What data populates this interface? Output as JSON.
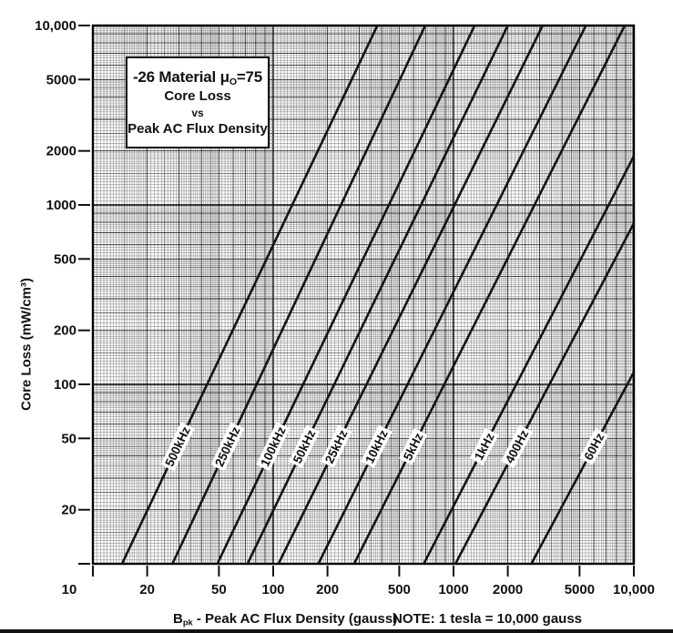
{
  "title_box": {
    "line1_a": "-26 Material μ",
    "line1_sub": "O",
    "line1_b": "=75",
    "line2": "Core Loss",
    "line3": "vs",
    "line4": "Peak AC Flux Density"
  },
  "y_axis_title": "Core Loss (mW/cm³)",
  "x_axis_caption": {
    "b": "B",
    "b_sub": "pk",
    "rest": " - Peak AC Flux Density (gauss)",
    "note": "NOTE: 1 tesla = 10,000 gauss"
  },
  "chart_data": {
    "type": "line",
    "title": "-26 Material μO=75 Core Loss vs Peak AC Flux Density",
    "xlabel": "Bpk - Peak AC Flux Density (gauss)",
    "ylabel": "Core Loss (mW/cm³)",
    "x_scale": "log",
    "y_scale": "log",
    "xlim": [
      10,
      10000
    ],
    "ylim": [
      10,
      10000
    ],
    "grid": "log-graph-paper",
    "legend_position": "labels-on-lines",
    "note": "1 tesla = 10,000 gauss",
    "x_ticks": [
      {
        "v": 10,
        "label": "10",
        "dx": -26
      },
      {
        "v": 20,
        "label": "20",
        "dx": 0
      },
      {
        "v": 50,
        "label": "50",
        "dx": 0
      },
      {
        "v": 100,
        "label": "100",
        "dx": 0
      },
      {
        "v": 200,
        "label": "200",
        "dx": 0
      },
      {
        "v": 500,
        "label": "500",
        "dx": 0
      },
      {
        "v": 1000,
        "label": "1000",
        "dx": 0
      },
      {
        "v": 2000,
        "label": "2000",
        "dx": 0
      },
      {
        "v": 5000,
        "label": "5000",
        "dx": 0
      },
      {
        "v": 10000,
        "label": "10,000",
        "dx": 0
      }
    ],
    "y_ticks": [
      {
        "v": 10000,
        "label": "10,000"
      },
      {
        "v": 5000,
        "label": "5000"
      },
      {
        "v": 2000,
        "label": "2000"
      },
      {
        "v": 1000,
        "label": "1000"
      },
      {
        "v": 500,
        "label": "500"
      },
      {
        "v": 200,
        "label": "200"
      },
      {
        "v": 100,
        "label": "100"
      },
      {
        "v": 50,
        "label": "50"
      },
      {
        "v": 20,
        "label": "20"
      },
      {
        "v": 10,
        "label": ""
      }
    ],
    "series_units": {
      "x": "gauss",
      "y": "mW/cm3"
    },
    "series": [
      {
        "label": "500kHz",
        "slope": 2.12,
        "b_at_100mW": 43,
        "points": [
          [
            14.5,
            10
          ],
          [
            43,
            100
          ],
          [
            127,
            1000
          ],
          [
            378,
            10000
          ]
        ]
      },
      {
        "label": "250kHz",
        "slope": 2.14,
        "b_at_100mW": 81,
        "points": [
          [
            27.6,
            10
          ],
          [
            81,
            100
          ],
          [
            238,
            1000
          ],
          [
            697,
            10000
          ]
        ]
      },
      {
        "label": "100kHz",
        "slope": 2.1,
        "b_at_100mW": 146,
        "points": [
          [
            49,
            10
          ],
          [
            146,
            100
          ],
          [
            437,
            1000
          ],
          [
            1310,
            10000
          ]
        ]
      },
      {
        "label": "50kHz",
        "slope": 2.08,
        "b_at_100mW": 218,
        "points": [
          [
            72,
            10
          ],
          [
            218,
            100
          ],
          [
            660,
            1000
          ],
          [
            2000,
            10000
          ]
        ]
      },
      {
        "label": "25kHz",
        "slope": 2.05,
        "b_at_100mW": 330,
        "points": [
          [
            107,
            10
          ],
          [
            330,
            100
          ],
          [
            1015,
            1000
          ],
          [
            3120,
            10000
          ]
        ]
      },
      {
        "label": "10kHz",
        "slope": 2.02,
        "b_at_100mW": 555,
        "points": [
          [
            178,
            10
          ],
          [
            555,
            100
          ],
          [
            1735,
            1000
          ],
          [
            5420,
            10000
          ]
        ]
      },
      {
        "label": "5kHz",
        "slope": 2.0,
        "b_at_100mW": 890,
        "points": [
          [
            281,
            10
          ],
          [
            890,
            100
          ],
          [
            2810,
            1000
          ],
          [
            8900,
            10000
          ]
        ]
      },
      {
        "label": "1kHz",
        "slope": 1.95,
        "b_at_100mW": 2230,
        "points": [
          [
            684,
            10
          ],
          [
            2230,
            100
          ],
          [
            7270,
            1000
          ],
          [
            10000,
            1870
          ]
        ]
      },
      {
        "label": "400Hz",
        "slope": 1.92,
        "b_at_100mW": 3400,
        "points": [
          [
            1025,
            10
          ],
          [
            3400,
            100
          ],
          [
            10000,
            790
          ]
        ]
      },
      {
        "label": "60Hz",
        "slope": 1.88,
        "b_at_100mW": 9200,
        "points": [
          [
            2700,
            10
          ],
          [
            9200,
            100
          ],
          [
            10000,
            117
          ]
        ]
      }
    ],
    "line_label_at_mW": 45,
    "colors": {
      "line": "#141414",
      "border": "#000000",
      "grid_major": "#000000",
      "grid_integer": "#222222",
      "grid_half": "#3c3c3c",
      "grid_minor": "#6e6e6e",
      "label_bg": "#ffffff",
      "text": "#111111"
    }
  }
}
